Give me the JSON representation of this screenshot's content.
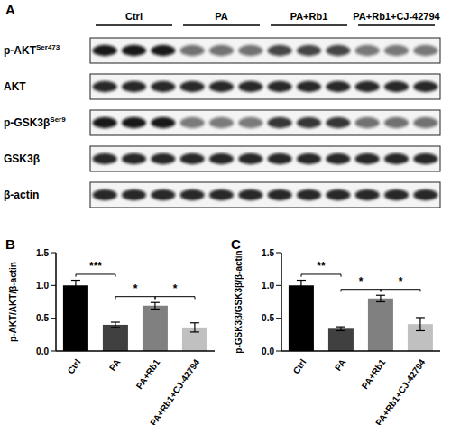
{
  "panel_a": {
    "label": "A",
    "groups": [
      "Ctrl",
      "PA",
      "PA+Rb1",
      "PA+Rb1+CJ-42794"
    ],
    "rows": [
      {
        "name": "p-AKT",
        "superscript": "Ser473"
      },
      {
        "name": "AKT"
      },
      {
        "name": "p-GSK3β",
        "superscript": "Ser9"
      },
      {
        "name": "GSK3β"
      },
      {
        "name": "β-actin"
      }
    ]
  },
  "chart_data": [
    {
      "type": "bar",
      "title": "B",
      "y_label": "p-AKT/AKT/β-actin",
      "categories": [
        "Ctrl",
        "PA",
        "PA+Rb1",
        "PA+Rb1+CJ-42794"
      ],
      "values": [
        1.0,
        0.4,
        0.69,
        0.36
      ],
      "errors": [
        0.08,
        0.04,
        0.05,
        0.07
      ],
      "colors": [
        "#000000",
        "#404040",
        "#808080",
        "#c0c0c0"
      ],
      "ylim": [
        0,
        1.5
      ],
      "yticks": [
        {
          "value": 0,
          "label": "0.0"
        },
        {
          "value": 0.5,
          "label": "0.5"
        },
        {
          "value": 1,
          "label": "1.0"
        },
        {
          "value": 1.5,
          "label": "1.5"
        }
      ],
      "annotations": [
        {
          "from": "Ctrl",
          "to": "PA",
          "text": "***"
        },
        {
          "from": "PA",
          "to": "PA+Rb1",
          "text": "*"
        },
        {
          "from": "PA+Rb1",
          "to": "PA+Rb1+CJ-42794",
          "text": "*"
        }
      ]
    },
    {
      "type": "bar",
      "title": "C",
      "y_label": "p-GSK3β/GSK3β/β-actin",
      "categories": [
        "Ctrl",
        "PA",
        "PA+Rb1",
        "PA+Rb1+CJ-42794"
      ],
      "values": [
        1.0,
        0.34,
        0.8,
        0.41
      ],
      "errors": [
        0.08,
        0.03,
        0.05,
        0.1
      ],
      "colors": [
        "#000000",
        "#404040",
        "#808080",
        "#c0c0c0"
      ],
      "ylim": [
        0,
        1.5
      ],
      "yticks": [
        {
          "value": 0,
          "label": "0.0"
        },
        {
          "value": 0.5,
          "label": "0.5"
        },
        {
          "value": 1,
          "label": "1.0"
        },
        {
          "value": 1.5,
          "label": "1.5"
        }
      ],
      "annotations": [
        {
          "from": "Ctrl",
          "to": "PA",
          "text": "**"
        },
        {
          "from": "PA",
          "to": "PA+Rb1",
          "text": "*"
        },
        {
          "from": "PA+Rb1",
          "to": "PA+Rb1+CJ-42794",
          "text": "*"
        }
      ]
    }
  ]
}
